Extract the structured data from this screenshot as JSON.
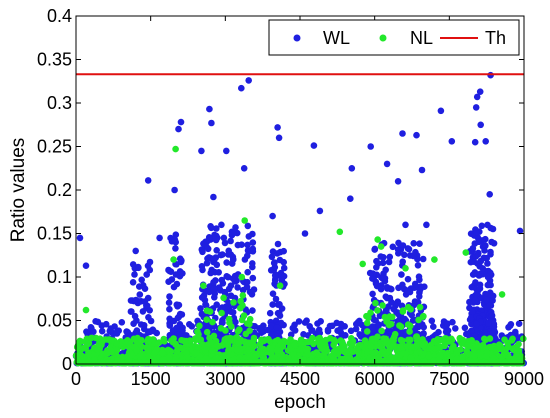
{
  "chart_data": {
    "type": "scatter",
    "title": "",
    "xlabel": "epoch",
    "ylabel": "Ratio values",
    "xlim": [
      0,
      9000
    ],
    "ylim": [
      0,
      0.4
    ],
    "xticks": [
      0,
      1500,
      3000,
      4500,
      6000,
      7500,
      9000
    ],
    "xtick_labels": [
      "0",
      "1500",
      "3000",
      "4500",
      "6000",
      "7500",
      "9000"
    ],
    "yticks": [
      0,
      0.05,
      0.1,
      0.15,
      0.2,
      0.25,
      0.3,
      0.35,
      0.4
    ],
    "ytick_labels": [
      "0",
      "0.05",
      "0.1",
      "0.15",
      "0.2",
      "0.25",
      "0.3",
      "0.35",
      "0.4"
    ],
    "grid": false,
    "legend_position": "top-right",
    "series": [
      {
        "name": "WL",
        "marker": "dot",
        "color": "#1f1fe0",
        "outliers": [
          [
            80,
            0.145
          ],
          [
            200,
            0.113
          ],
          [
            1200,
            0.13
          ],
          [
            1450,
            0.211
          ],
          [
            1680,
            0.145
          ],
          [
            1980,
            0.2
          ],
          [
            2060,
            0.27
          ],
          [
            2110,
            0.278
          ],
          [
            2520,
            0.245
          ],
          [
            2680,
            0.293
          ],
          [
            2720,
            0.277
          ],
          [
            2760,
            0.192
          ],
          [
            2920,
            0.16
          ],
          [
            3020,
            0.245
          ],
          [
            3320,
            0.317
          ],
          [
            3470,
            0.326
          ],
          [
            3380,
            0.225
          ],
          [
            4050,
            0.272
          ],
          [
            4080,
            0.26
          ],
          [
            4780,
            0.251
          ],
          [
            4900,
            0.176
          ],
          [
            5540,
            0.225
          ],
          [
            5510,
            0.19
          ],
          [
            6250,
            0.23
          ],
          [
            6470,
            0.21
          ],
          [
            6560,
            0.265
          ],
          [
            6620,
            0.16
          ],
          [
            6840,
            0.263
          ],
          [
            6950,
            0.223
          ],
          [
            7040,
            0.16
          ],
          [
            7330,
            0.291
          ],
          [
            7550,
            0.256
          ],
          [
            8060,
            0.307
          ],
          [
            8120,
            0.313
          ],
          [
            8040,
            0.295
          ],
          [
            8130,
            0.275
          ],
          [
            8020,
            0.255
          ],
          [
            8230,
            0.256
          ],
          [
            8330,
            0.332
          ],
          [
            8310,
            0.195
          ],
          [
            8920,
            0.153
          ],
          [
            5920,
            0.25
          ],
          [
            3950,
            0.17
          ],
          [
            4600,
            0.15
          ]
        ],
        "clusters": [
          {
            "x_range": [
              0,
              9000
            ],
            "density": "dense",
            "y_typical": [
              0,
              0.05
            ]
          },
          {
            "x_range": [
              1100,
              1500
            ],
            "density": "moderate",
            "y_typical": [
              0,
              0.12
            ]
          },
          {
            "x_range": [
              1850,
              2150
            ],
            "density": "moderate",
            "y_typical": [
              0,
              0.15
            ]
          },
          {
            "x_range": [
              2500,
              3600
            ],
            "density": "heavy",
            "y_typical": [
              0,
              0.16
            ]
          },
          {
            "x_range": [
              3900,
              4200
            ],
            "density": "moderate",
            "y_typical": [
              0,
              0.14
            ]
          },
          {
            "x_range": [
              5900,
              7000
            ],
            "density": "heavy",
            "y_typical": [
              0,
              0.14
            ]
          },
          {
            "x_range": [
              7900,
              8400
            ],
            "density": "heavy",
            "y_typical": [
              0,
              0.16
            ]
          }
        ]
      },
      {
        "name": "NL",
        "marker": "dot",
        "color": "#22e82a",
        "outliers": [
          [
            2000,
            0.247
          ],
          [
            1960,
            0.12
          ],
          [
            3390,
            0.165
          ],
          [
            3330,
            0.1
          ],
          [
            5300,
            0.152
          ],
          [
            6060,
            0.143
          ],
          [
            6130,
            0.135
          ],
          [
            5760,
            0.115
          ],
          [
            7200,
            0.12
          ],
          [
            7830,
            0.128
          ],
          [
            2560,
            0.09
          ],
          [
            4100,
            0.09
          ],
          [
            6620,
            0.11
          ],
          [
            8560,
            0.08
          ],
          [
            200,
            0.062
          ]
        ],
        "clusters": [
          {
            "x_range": [
              0,
              9000
            ],
            "density": "very dense",
            "y_typical": [
              0,
              0.03
            ]
          },
          {
            "x_range": [
              2400,
              3500
            ],
            "density": "moderate",
            "y_typical": [
              0,
              0.08
            ]
          },
          {
            "x_range": [
              5800,
              7000
            ],
            "density": "moderate",
            "y_typical": [
              0,
              0.07
            ]
          }
        ]
      },
      {
        "name": "Th",
        "marker": "line",
        "color": "#e01010",
        "values": [
          [
            0,
            0.333
          ],
          [
            9000,
            0.333
          ]
        ]
      }
    ]
  }
}
